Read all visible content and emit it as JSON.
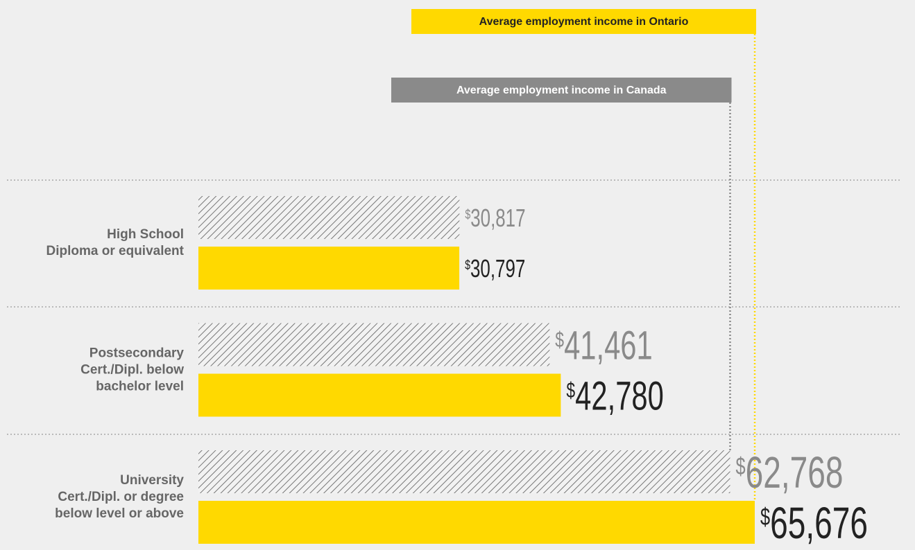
{
  "chart_data": {
    "type": "bar",
    "categories": [
      "High School\nDiploma or equivalent",
      "Postsecondary\nCert./Dipl. below\nbachelor level",
      "University\nCert./Dipl. or degree\nbelow level or above"
    ],
    "series": [
      {
        "name": "Average employment income in Canada",
        "color": "#8a8a8a",
        "values": [
          30817,
          41461,
          62768
        ],
        "value_labels": [
          "$30,817",
          "$41,461",
          "$62,768"
        ]
      },
      {
        "name": "Average employment income in Ontario",
        "color": "#ffd900",
        "values": [
          30797,
          42780,
          65676
        ],
        "value_labels": [
          "$30,797",
          "$42,780",
          "$65,676"
        ]
      }
    ]
  }
}
